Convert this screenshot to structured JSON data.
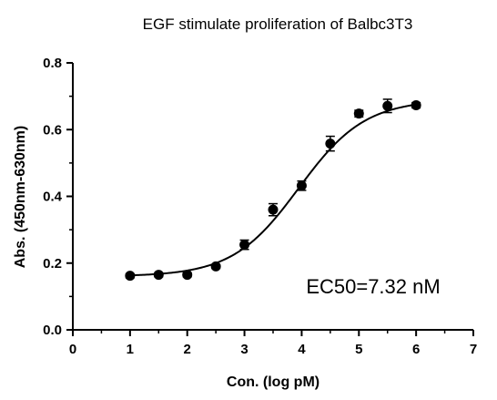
{
  "chart_data": {
    "type": "scatter",
    "title": "EGF stimulate proliferation of Balbc3T3",
    "xlabel": "Con. (log pM)",
    "ylabel": "Abs. (450nm-630nm)",
    "xlim": [
      0,
      7
    ],
    "ylim": [
      0.0,
      0.8
    ],
    "xticks": [
      "0",
      "1",
      "2",
      "3",
      "4",
      "5",
      "6",
      "7"
    ],
    "yticks": [
      "0.0",
      "0.2",
      "0.4",
      "0.6",
      "0.8"
    ],
    "grid": false,
    "annotation": "EC50=7.32 nM",
    "fit": "sigmoidal",
    "points": [
      {
        "x": 1.0,
        "y": 0.162,
        "err": 0.006
      },
      {
        "x": 1.5,
        "y": 0.165,
        "err": 0.006
      },
      {
        "x": 2.0,
        "y": 0.165,
        "err": 0.006
      },
      {
        "x": 2.5,
        "y": 0.19,
        "err": 0.006
      },
      {
        "x": 3.0,
        "y": 0.255,
        "err": 0.014
      },
      {
        "x": 3.5,
        "y": 0.36,
        "err": 0.018
      },
      {
        "x": 4.0,
        "y": 0.432,
        "err": 0.014
      },
      {
        "x": 4.5,
        "y": 0.558,
        "err": 0.022
      },
      {
        "x": 5.0,
        "y": 0.648,
        "err": 0.01
      },
      {
        "x": 5.5,
        "y": 0.671,
        "err": 0.02
      },
      {
        "x": 6.0,
        "y": 0.673,
        "err": 0.008
      }
    ]
  }
}
